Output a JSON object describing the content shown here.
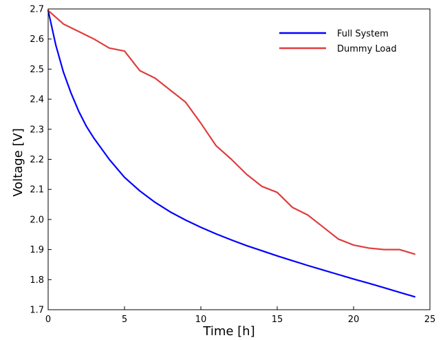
{
  "chart_data": {
    "type": "line",
    "xlabel": "Time [h]",
    "ylabel": "Voltage [V]",
    "xlim": [
      0,
      25
    ],
    "ylim": [
      1.7,
      2.7
    ],
    "xticks": [
      "0",
      "5",
      "10",
      "15",
      "20",
      "25"
    ],
    "yticks": [
      "1.7",
      "1.8",
      "1.9",
      "2.0",
      "2.1",
      "2.2",
      "2.3",
      "2.4",
      "2.5",
      "2.6",
      "2.7"
    ],
    "grid": false,
    "legend_position": "top-right",
    "series": [
      {
        "name": "Full System",
        "color": "#0000ff",
        "x": [
          0,
          0.5,
          1,
          1.5,
          2,
          2.5,
          3,
          4,
          5,
          6,
          7,
          8,
          9,
          10,
          11,
          12,
          13,
          14,
          15,
          16,
          17,
          18,
          19,
          20,
          21,
          22,
          23,
          24
        ],
        "y": [
          2.695,
          2.58,
          2.49,
          2.42,
          2.36,
          2.31,
          2.27,
          2.2,
          2.14,
          2.095,
          2.057,
          2.025,
          1.998,
          1.974,
          1.952,
          1.932,
          1.913,
          1.896,
          1.879,
          1.863,
          1.847,
          1.832,
          1.817,
          1.802,
          1.788,
          1.773,
          1.758,
          1.743
        ]
      },
      {
        "name": "Dummy Load",
        "color": "#e03c3c",
        "x": [
          0,
          1,
          2,
          3,
          4,
          5,
          6,
          7,
          8,
          9,
          10,
          11,
          12,
          13,
          14,
          15,
          16,
          17,
          18,
          19,
          20,
          21,
          22,
          23,
          24
        ],
        "y": [
          2.695,
          2.65,
          2.625,
          2.6,
          2.57,
          2.56,
          2.495,
          2.47,
          2.43,
          2.39,
          2.32,
          2.245,
          2.2,
          2.15,
          2.11,
          2.09,
          2.04,
          2.015,
          1.975,
          1.935,
          1.915,
          1.905,
          1.9,
          1.9,
          1.885
        ]
      }
    ]
  }
}
